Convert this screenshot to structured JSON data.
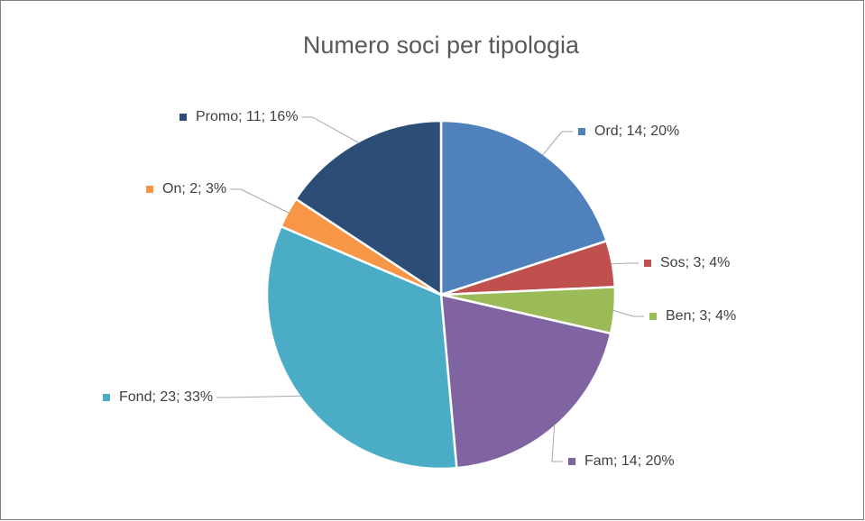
{
  "chart_data": {
    "type": "pie",
    "title": "Numero soci per tipologia",
    "categories": [
      "Ord",
      "Sos",
      "Ben",
      "Fam",
      "Fond",
      "On",
      "Promo"
    ],
    "values": [
      14,
      3,
      3,
      14,
      23,
      2,
      11
    ],
    "value_labels": [
      "Ord; 14; 20%",
      "Sos; 3; 4%",
      "Ben; 3; 4%",
      "Fam; 14; 20%",
      "Fond; 23; 33%",
      "On; 2; 3%",
      "Promo; 11; 16%"
    ],
    "colors": [
      "#4f81bd",
      "#c0504d",
      "#9bbb59",
      "#8064a2",
      "#4bacc6",
      "#f79646",
      "#2c4d75"
    ]
  }
}
